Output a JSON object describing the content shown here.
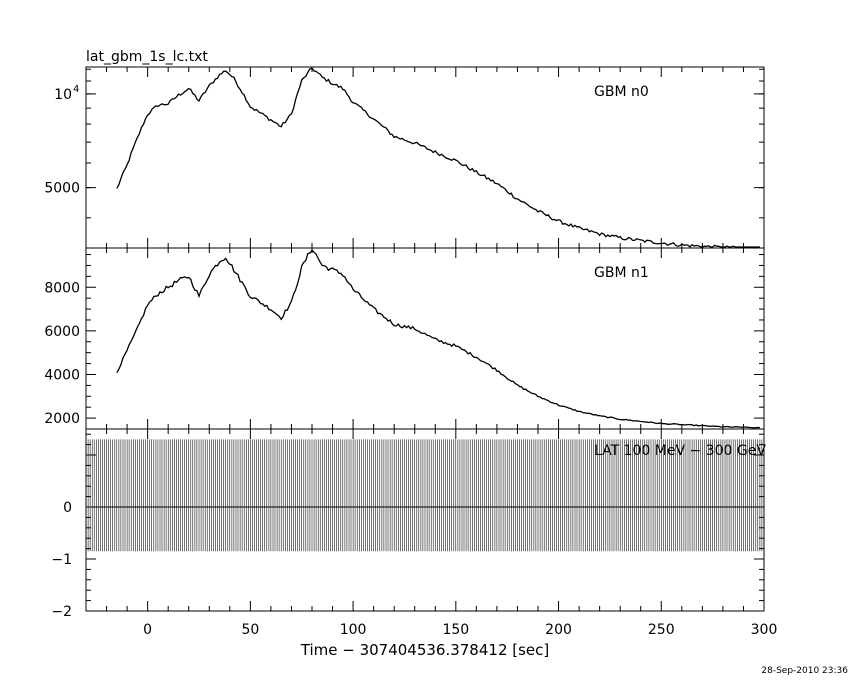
{
  "title": "lat_gbm_1s_lc.txt",
  "xlabel": "Time − 307404536.378412 [sec]",
  "timestamp": "28-Sep-2010 23:36",
  "colors": {
    "line": "#000000",
    "background": "#ffffff"
  },
  "chart_data": [
    {
      "type": "line",
      "panel": "top",
      "series_label": "GBM n0",
      "ylog": true,
      "ylim": [
        3200,
        12200
      ],
      "xlim": [
        -30,
        300
      ],
      "yticks": [
        {
          "value": 10000,
          "base": "10",
          "exp": "4"
        },
        {
          "value": 5000,
          "label": "5000"
        }
      ],
      "x": [
        -15,
        -10,
        -5,
        0,
        5,
        10,
        15,
        20,
        25,
        30,
        35,
        38,
        42,
        50,
        60,
        65,
        70,
        75,
        80,
        85,
        90,
        95,
        100,
        110,
        120,
        130,
        140,
        150,
        160,
        170,
        180,
        190,
        200,
        210,
        220,
        230,
        240,
        250,
        260,
        270,
        280,
        290,
        298
      ],
      "y": [
        4950,
        5900,
        7200,
        8600,
        9200,
        9300,
        9900,
        10400,
        9500,
        10600,
        11500,
        11900,
        11200,
        9100,
        8250,
        7850,
        8600,
        11000,
        12100,
        11300,
        10800,
        10400,
        9400,
        8300,
        7300,
        6950,
        6500,
        6100,
        5600,
        5150,
        4600,
        4200,
        3900,
        3700,
        3550,
        3450,
        3380,
        3320,
        3270,
        3240,
        3210,
        3200,
        3180
      ]
    },
    {
      "type": "line",
      "panel": "middle",
      "series_label": "GBM n1",
      "ylim": [
        1500,
        9800
      ],
      "xlim": [
        -30,
        300
      ],
      "yticks": [
        2000,
        4000,
        6000,
        8000
      ],
      "x": [
        -15,
        -10,
        -5,
        0,
        5,
        10,
        15,
        20,
        25,
        30,
        35,
        38,
        42,
        50,
        60,
        65,
        70,
        75,
        80,
        85,
        90,
        95,
        100,
        110,
        120,
        130,
        140,
        150,
        160,
        170,
        180,
        190,
        200,
        210,
        220,
        230,
        240,
        250,
        260,
        270,
        280,
        290,
        298
      ],
      "y": [
        4100,
        5100,
        6100,
        7200,
        7700,
        8000,
        8300,
        8500,
        7600,
        8600,
        9200,
        9400,
        8800,
        7600,
        7000,
        6600,
        7300,
        8900,
        9800,
        9000,
        8800,
        8600,
        7900,
        7000,
        6300,
        6100,
        5600,
        5300,
        4800,
        4200,
        3500,
        3000,
        2600,
        2300,
        2100,
        1950,
        1850,
        1750,
        1700,
        1650,
        1600,
        1580,
        1550
      ]
    },
    {
      "type": "bar",
      "panel": "bottom",
      "series_label": "LAT 100 MeV − 300 GeV",
      "ylim": [
        -2,
        1.5
      ],
      "xlim": [
        -30,
        300
      ],
      "yticks": [
        -2,
        -1,
        0
      ],
      "x_start": -30,
      "x_end": 300,
      "bin_width": 1,
      "errorbar_low": -0.85,
      "errorbar_high": 1.3,
      "value": 0
    }
  ],
  "xticks": [
    0,
    50,
    100,
    150,
    200,
    250,
    300
  ]
}
